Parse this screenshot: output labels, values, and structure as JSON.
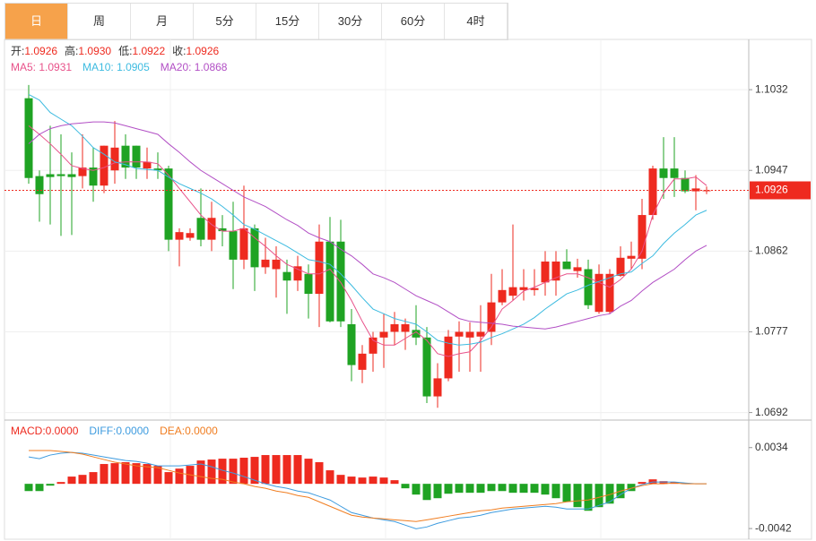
{
  "tabs": [
    "日",
    "周",
    "月",
    "5分",
    "15分",
    "30分",
    "60分",
    "4时"
  ],
  "chart_data": [
    {
      "type": "candlestick",
      "info": [
        {
          "label": "开:",
          "value": "1.0926"
        },
        {
          "label": "高:",
          "value": "1.0930"
        },
        {
          "label": "低:",
          "value": "1.0922"
        },
        {
          "label": "收:",
          "value": "1.0926"
        }
      ],
      "up_color": "#ee2a1f",
      "down_color": "#1fa323",
      "open": [
        1.1023,
        1.0941,
        1.0943,
        1.0943,
        1.0943,
        1.0941,
        1.095,
        1.0931,
        1.0947,
        1.0973,
        1.0973,
        1.0949,
        1.0949,
        1.0949,
        1.0874,
        1.0876,
        1.0897,
        1.0874,
        1.0886,
        1.0883,
        1.0853,
        1.0886,
        1.0845,
        1.0843,
        1.084,
        1.0831,
        1.0838,
        1.0817,
        1.0872,
        1.0872,
        1.0785,
        1.0737,
        1.0754,
        1.0771,
        1.0777,
        1.0777,
        1.0779,
        1.0771,
        1.0709,
        1.0728,
        1.0772,
        1.0771,
        1.0772,
        1.0777,
        1.0808,
        1.0815,
        1.0821,
        1.0821,
        1.0829,
        1.0831,
        1.0851,
        1.0841,
        1.0843,
        1.0798,
        1.0798,
        1.0836,
        1.0854,
        1.0854,
        1.09,
        1.0949,
        1.0949,
        1.0939,
        1.0925,
        1.0926
      ],
      "high": [
        1.1037,
        1.0947,
        1.0994,
        1.0985,
        1.0966,
        1.0985,
        1.0971,
        1.0973,
        1.0999,
        1.0985,
        1.0973,
        1.0971,
        1.0966,
        1.0952,
        1.0886,
        1.0886,
        1.0928,
        1.0914,
        1.09,
        1.0914,
        1.0931,
        1.089,
        1.0876,
        1.0867,
        1.0853,
        1.0857,
        1.0848,
        1.089,
        1.0898,
        1.0895,
        1.0801,
        1.0763,
        1.0777,
        1.0796,
        1.0798,
        1.0791,
        1.0805,
        1.0782,
        1.0744,
        1.0779,
        1.0788,
        1.0787,
        1.0805,
        1.0838,
        1.0843,
        1.089,
        1.0843,
        1.0843,
        1.0862,
        1.0862,
        1.0864,
        1.0854,
        1.0853,
        1.0848,
        1.0843,
        1.0867,
        1.0872,
        1.0917,
        1.0952,
        1.0982,
        1.0982,
        1.0947,
        1.0942,
        1.093
      ],
      "low": [
        1.0933,
        1.0893,
        1.089,
        1.0878,
        1.0879,
        1.0928,
        1.0914,
        1.0923,
        1.0933,
        1.0938,
        1.0938,
        1.0938,
        1.0938,
        1.0862,
        1.0846,
        1.0873,
        1.0867,
        1.0862,
        1.0867,
        1.0822,
        1.0843,
        1.082,
        1.0838,
        1.0813,
        1.0796,
        1.082,
        1.0791,
        1.0782,
        1.0787,
        1.0782,
        1.0725,
        1.0723,
        1.0735,
        1.0739,
        1.0763,
        1.0758,
        1.0763,
        1.0702,
        1.0697,
        1.0725,
        1.0735,
        1.0735,
        1.0735,
        1.0763,
        1.0805,
        1.081,
        1.081,
        1.0815,
        1.0815,
        1.0815,
        1.0843,
        1.0834,
        1.0801,
        1.0796,
        1.0796,
        1.0835,
        1.0843,
        1.0843,
        1.0895,
        1.0917,
        1.0919,
        1.0923,
        1.0905,
        1.0922
      ],
      "close": [
        1.0939,
        1.0922,
        1.094,
        1.0941,
        1.094,
        1.095,
        1.0931,
        1.0973,
        1.0971,
        1.095,
        1.095,
        1.0956,
        1.0947,
        1.0874,
        1.0882,
        1.0881,
        1.0874,
        1.0897,
        1.0883,
        1.0853,
        1.0886,
        1.0845,
        1.0853,
        1.0853,
        1.0831,
        1.0846,
        1.0817,
        1.0872,
        1.0788,
        1.0788,
        1.0742,
        1.0754,
        1.0771,
        1.0777,
        1.0785,
        1.0785,
        1.0771,
        1.0709,
        1.0728,
        1.0772,
        1.0777,
        1.0777,
        1.0777,
        1.0808,
        1.0821,
        1.0824,
        1.0824,
        1.0823,
        1.0851,
        1.0851,
        1.0843,
        1.0845,
        1.0805,
        1.0838,
        1.0838,
        1.0855,
        1.0857,
        1.09,
        1.0949,
        1.0939,
        1.0939,
        1.0925,
        1.0928,
        1.0926
      ],
      "series": [
        {
          "label": "MA5: 1.0931",
          "color": "#e8528a",
          "values": [
            1.0994,
            1.0985,
            1.0975,
            1.0964,
            1.0952,
            1.0949,
            1.0947,
            1.095,
            1.0955,
            1.0956,
            1.0956,
            1.0956,
            1.0954,
            1.0942,
            1.0928,
            1.0914,
            1.09,
            1.089,
            1.0883,
            1.0883,
            1.0886,
            1.0876,
            1.0867,
            1.0857,
            1.0848,
            1.0843,
            1.0838,
            1.0838,
            1.0843,
            1.0829,
            1.081,
            1.0788,
            1.0768,
            1.0763,
            1.0763,
            1.077,
            1.0777,
            1.0768,
            1.0754,
            1.0751,
            1.0754,
            1.0756,
            1.0768,
            1.0782,
            1.0801,
            1.081,
            1.082,
            1.0824,
            1.0829,
            1.0834,
            1.0838,
            1.0838,
            1.0834,
            1.0829,
            1.0824,
            1.0832,
            1.0843,
            1.0862,
            1.09,
            1.0923,
            1.0938,
            1.0938,
            1.094,
            1.0931
          ]
        },
        {
          "label": "MA10: 1.0905",
          "color": "#3dbbe0",
          "values": [
            1.1027,
            1.1021,
            1.1008,
            1.1001,
            1.0994,
            1.0983,
            1.0971,
            1.0964,
            1.0956,
            1.0953,
            1.0949,
            1.0948,
            1.0947,
            1.094,
            1.0933,
            1.0928,
            1.0923,
            1.0917,
            1.0909,
            1.09,
            1.089,
            1.0885,
            1.0879,
            1.0873,
            1.0867,
            1.086,
            1.0853,
            1.0851,
            1.0848,
            1.0838,
            1.0826,
            1.0813,
            1.0801,
            1.0796,
            1.0791,
            1.0788,
            1.0785,
            1.0777,
            1.0768,
            1.0765,
            1.0763,
            1.0764,
            1.0766,
            1.0771,
            1.0775,
            1.078,
            1.0785,
            1.0792,
            1.0801,
            1.0809,
            1.0817,
            1.0821,
            1.0826,
            1.083,
            1.0834,
            1.0838,
            1.084,
            1.0849,
            1.0857,
            1.087,
            1.0881,
            1.089,
            1.09,
            1.0905
          ]
        },
        {
          "label": "MA20: 1.0868",
          "color": "#b24fc5",
          "values": [
            1.0975,
            1.0985,
            1.0991,
            1.0994,
            1.0996,
            1.0997,
            1.0998,
            1.0998,
            1.0997,
            1.0994,
            1.0991,
            1.0988,
            1.0985,
            1.0975,
            1.0966,
            1.0956,
            1.0947,
            1.094,
            1.0933,
            1.0926,
            1.0919,
            1.0914,
            1.0909,
            1.0902,
            1.0895,
            1.0889,
            1.0881,
            1.0876,
            1.0872,
            1.0864,
            1.0857,
            1.0848,
            1.0838,
            1.0834,
            1.0829,
            1.0822,
            1.0815,
            1.081,
            1.0805,
            1.0798,
            1.0791,
            1.0788,
            1.0787,
            1.0786,
            1.0785,
            1.0783,
            1.0782,
            1.0781,
            1.078,
            1.0782,
            1.0785,
            1.0788,
            1.0791,
            1.0794,
            1.0796,
            1.0804,
            1.081,
            1.082,
            1.0829,
            1.0836,
            1.0843,
            1.0853,
            1.0862,
            1.0868
          ]
        }
      ],
      "last_price": 1.0926,
      "ylim": [
        1.0685,
        1.1084
      ],
      "yticks": [
        1.0692,
        1.0777,
        1.0862,
        1.0947,
        1.1032
      ],
      "grid": true
    },
    {
      "type": "macd",
      "histogram": {
        "label": "MACD:0.0000",
        "color": "#ee2a1f",
        "up_color": "#ee2a1f",
        "down_color": "#1fa323",
        "values": [
          -0.00068,
          -0.00068,
          -0.00017,
          0.00017,
          0.00068,
          0.00084,
          0.0011,
          0.00186,
          0.00194,
          0.00203,
          0.00194,
          0.00186,
          0.00169,
          0.0011,
          0.00143,
          0.00169,
          0.00219,
          0.00228,
          0.00236,
          0.00236,
          0.00245,
          0.00253,
          0.0027,
          0.0027,
          0.0027,
          0.0027,
          0.00236,
          0.00203,
          0.00127,
          0.00084,
          0.00068,
          0.00059,
          0.00068,
          0.00059,
          0.00034,
          -0.00042,
          -0.00101,
          -0.00152,
          -0.00135,
          -0.00093,
          -0.00084,
          -0.00084,
          -0.00084,
          -0.00068,
          -0.00068,
          -0.00084,
          -0.00084,
          -0.00084,
          -0.00101,
          -0.00135,
          -0.00169,
          -0.00219,
          -0.00253,
          -0.00219,
          -0.00186,
          -0.00135,
          -0.00068,
          0.00017,
          0.00042,
          0.00025,
          0.00017,
          8e-05,
          0,
          0
        ]
      },
      "series": [
        {
          "label": "DIFF:0.0000",
          "color": "#3d9bdf",
          "values": [
            0.00253,
            0.00236,
            0.0027,
            0.00287,
            0.00295,
            0.00287,
            0.0027,
            0.00253,
            0.00236,
            0.00219,
            0.00211,
            0.00194,
            0.00169,
            0.00169,
            0.00169,
            0.00177,
            0.00186,
            0.0016,
            0.00127,
            0.00101,
            0.00068,
            0.00034,
            0,
            -0.00025,
            -0.00042,
            -0.00068,
            -0.00084,
            -0.00118,
            -0.00152,
            -0.00211,
            -0.0027,
            -0.00295,
            -0.00321,
            -0.00338,
            -0.00354,
            -0.00388,
            -0.00422,
            -0.00405,
            -0.00371,
            -0.00346,
            -0.00321,
            -0.00312,
            -0.00295,
            -0.0027,
            -0.00253,
            -0.00236,
            -0.00228,
            -0.00219,
            -0.00211,
            -0.00219,
            -0.00236,
            -0.00236,
            -0.00236,
            -0.00203,
            -0.00169,
            -0.00101,
            -0.00042,
            -8e-05,
            0.00017,
            0.00017,
            0.00017,
            8e-05,
            0,
            0
          ]
        },
        {
          "label": "DEA:0.0000",
          "color": "#f07d20",
          "values": [
            0.00312,
            0.00312,
            0.00312,
            0.00304,
            0.00295,
            0.00279,
            0.00253,
            0.00228,
            0.00203,
            0.00186,
            0.00169,
            0.0016,
            0.00152,
            0.00127,
            0.00101,
            0.00084,
            0.00068,
            0.00051,
            0.00042,
            0.00017,
            0,
            -0.00025,
            -0.00042,
            -0.00068,
            -0.00084,
            -0.0011,
            -0.00127,
            -0.00169,
            -0.00211,
            -0.00253,
            -0.00295,
            -0.00312,
            -0.00321,
            -0.00329,
            -0.00338,
            -0.00346,
            -0.00354,
            -0.00338,
            -0.00321,
            -0.00304,
            -0.00287,
            -0.0027,
            -0.00253,
            -0.00245,
            -0.00228,
            -0.00219,
            -0.00211,
            -0.00203,
            -0.00194,
            -0.00186,
            -0.00169,
            -0.0016,
            -0.00152,
            -0.00127,
            -0.00101,
            -0.00068,
            -0.00042,
            -0.00017,
            0,
            0,
            8e-05,
            0,
            0,
            0
          ]
        }
      ],
      "ylim": [
        -0.0052,
        0.0059
      ],
      "yticks": [
        -0.0042,
        0.0034
      ]
    }
  ]
}
